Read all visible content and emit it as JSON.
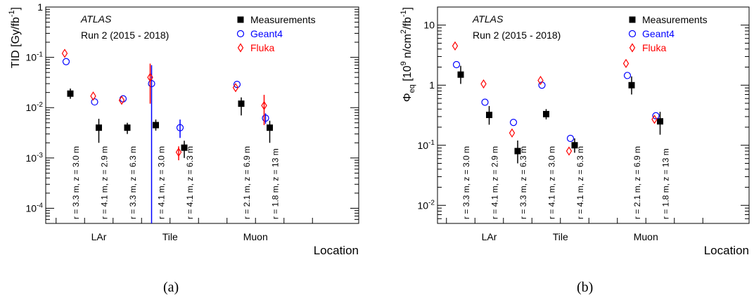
{
  "captions": [
    "(a)",
    "(b)"
  ],
  "chart_data": [
    {
      "type": "scatter",
      "yscale": "log",
      "ylim": [
        5e-05,
        1
      ],
      "ylabel": "TID [Gy/fb",
      "ylabel_sup": "-1",
      "ylabel_tail": "]",
      "xlabel": "Location",
      "header": "ATLAS",
      "subheader": "Run 2 (2015 - 2018)",
      "yticks": [
        {
          "value": 0.0001,
          "base": "10",
          "exp": "-4"
        },
        {
          "value": 0.001,
          "base": "10",
          "exp": "-3"
        },
        {
          "value": 0.01,
          "base": "10",
          "exp": "-2"
        },
        {
          "value": 0.1,
          "base": "10",
          "exp": "-1"
        },
        {
          "value": 1,
          "base": "1",
          "exp": ""
        }
      ],
      "groups": [
        {
          "label": "LAr",
          "x_index": 2
        },
        {
          "label": "Tile",
          "x_index": 4.5
        },
        {
          "label": "Muon",
          "x_index": 7.5
        }
      ],
      "locations": [
        "r = 3.3 m, z = 3.0 m",
        "r = 4.1 m, z = 2.9 m",
        "r = 3.3 m, z = 6.3 m",
        "r = 4.1 m, z = 3.0 m",
        "r = 4.1 m, z = 6.3 m",
        "r = 2.1 m, z = 6.9 m",
        "r = 1.8 m, z = 13 m"
      ],
      "location_index": [
        1,
        2,
        3,
        4,
        5,
        7,
        8
      ],
      "series": [
        {
          "name": "Measurements",
          "color": "#000000",
          "marker": "square",
          "values": [
            0.019,
            0.004,
            0.004,
            0.0045,
            0.0016,
            0.012,
            0.004
          ],
          "errors": [
            [
              0.015,
              0.024
            ],
            [
              0.002,
              0.006
            ],
            [
              0.003,
              0.005
            ],
            [
              0.0035,
              0.0058
            ],
            [
              0.001,
              0.0022
            ],
            [
              0.007,
              0.016
            ],
            [
              0.002,
              0.0055
            ]
          ]
        },
        {
          "name": "Geant4",
          "color": "#0000ff",
          "marker": "circle",
          "values": [
            0.082,
            0.013,
            0.015,
            0.03,
            0.004,
            0.029,
            0.0062
          ],
          "errors": [
            null,
            null,
            null,
            [
              5e-05,
              0.07
            ],
            [
              0.0025,
              0.0058
            ],
            null,
            [
              0.0048,
              0.0077
            ]
          ]
        },
        {
          "name": "Fluka",
          "color": "#ff0000",
          "marker": "diamond",
          "values": [
            0.12,
            0.017,
            0.014,
            0.04,
            0.0013,
            0.025,
            0.011
          ],
          "errors": [
            null,
            null,
            null,
            [
              0.012,
              0.075
            ],
            [
              0.0009,
              0.0017
            ],
            null,
            [
              0.0045,
              0.018
            ]
          ]
        }
      ]
    },
    {
      "type": "scatter",
      "yscale": "log",
      "ylim": [
        0.005,
        20
      ],
      "ylabel": "Φ",
      "ylabel_sub": "eq",
      "ylabel_unit": " [10",
      "ylabel_unit_sup": "9",
      "ylabel_unit_mid": " n/cm",
      "ylabel_unit_sup2": "2",
      "ylabel_unit_mid2": "/fb",
      "ylabel_unit_sup3": "-1",
      "ylabel_unit_tail": "]",
      "xlabel": "Location",
      "header": "ATLAS",
      "subheader": "Run 2 (2015 - 2018)",
      "yticks": [
        {
          "value": 0.01,
          "base": "10",
          "exp": "-2"
        },
        {
          "value": 0.1,
          "base": "10",
          "exp": "-1"
        },
        {
          "value": 1,
          "base": "1",
          "exp": ""
        },
        {
          "value": 10,
          "base": "10",
          "exp": ""
        }
      ],
      "groups": [
        {
          "label": "LAr",
          "x_index": 2
        },
        {
          "label": "Tile",
          "x_index": 4.5
        },
        {
          "label": "Muon",
          "x_index": 7.5
        }
      ],
      "locations": [
        "r = 3.3 m, z = 3.0 m",
        "r = 4.1 m, z = 2.9 m",
        "r = 3.3 m, z = 6.3 m",
        "r = 4.1 m, z = 3.0 m",
        "r = 4.1 m, z = 6.3 m",
        "r = 2.1 m, z = 6.9 m",
        "r = 1.8 m, z = 13 m"
      ],
      "location_index": [
        1,
        2,
        3,
        4,
        5,
        7,
        8
      ],
      "series": [
        {
          "name": "Measurements",
          "color": "#000000",
          "marker": "square",
          "values": [
            1.5,
            0.32,
            0.08,
            0.33,
            0.1,
            1.0,
            0.25
          ],
          "errors": [
            [
              1.05,
              2.1
            ],
            [
              0.22,
              0.45
            ],
            [
              0.05,
              0.12
            ],
            [
              0.27,
              0.4
            ],
            [
              0.075,
              0.13
            ],
            [
              0.7,
              1.4
            ],
            [
              0.15,
              0.36
            ]
          ]
        },
        {
          "name": "Geant4",
          "color": "#0000ff",
          "marker": "circle",
          "values": [
            2.2,
            0.52,
            0.24,
            1.0,
            0.13,
            1.45,
            0.31
          ],
          "errors": [
            null,
            null,
            null,
            null,
            null,
            null,
            null
          ]
        },
        {
          "name": "Fluka",
          "color": "#ff0000",
          "marker": "diamond",
          "values": [
            4.5,
            1.05,
            0.16,
            1.2,
            0.08,
            2.3,
            0.27
          ],
          "errors": [
            null,
            null,
            null,
            null,
            null,
            null,
            null
          ]
        }
      ]
    }
  ]
}
